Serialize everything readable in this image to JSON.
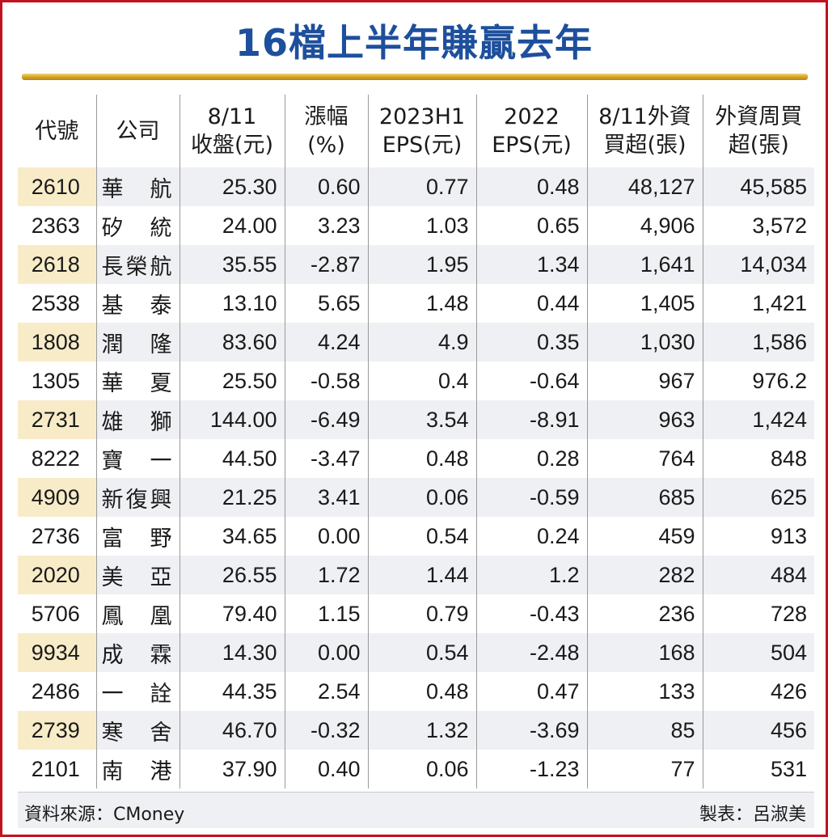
{
  "title": "16檔上半年賺贏去年",
  "colors": {
    "frame": "#c1121f",
    "title": "#1d4f9c",
    "band": "#eff0f3",
    "code_band": "#f8ecc8",
    "rule": "#d9a928"
  },
  "headers": [
    [
      "代號",
      ""
    ],
    [
      "公司",
      ""
    ],
    [
      "8/11",
      "收盤(元)"
    ],
    [
      "漲幅",
      "(%)"
    ],
    [
      "2023H1",
      "EPS(元)"
    ],
    [
      "2022",
      "EPS(元)"
    ],
    [
      "8/11外資",
      "買超(張)"
    ],
    [
      "外資周買",
      "超(張)"
    ]
  ],
  "rows": [
    [
      "2610",
      "華　航",
      "25.30",
      "0.60",
      "0.77",
      "0.48",
      "48,127",
      "45,585"
    ],
    [
      "2363",
      "矽　統",
      "24.00",
      "3.23",
      "1.03",
      "0.65",
      "4,906",
      "3,572"
    ],
    [
      "2618",
      "長榮航",
      "35.55",
      "-2.87",
      "1.95",
      "1.34",
      "1,641",
      "14,034"
    ],
    [
      "2538",
      "基　泰",
      "13.10",
      "5.65",
      "1.48",
      "0.44",
      "1,405",
      "1,421"
    ],
    [
      "1808",
      "潤　隆",
      "83.60",
      "4.24",
      "4.9",
      "0.35",
      "1,030",
      "1,586"
    ],
    [
      "1305",
      "華　夏",
      "25.50",
      "-0.58",
      "0.4",
      "-0.64",
      "967",
      "976.2"
    ],
    [
      "2731",
      "雄　獅",
      "144.00",
      "-6.49",
      "3.54",
      "-8.91",
      "963",
      "1,424"
    ],
    [
      "8222",
      "寶　一",
      "44.50",
      "-3.47",
      "0.48",
      "0.28",
      "764",
      "848"
    ],
    [
      "4909",
      "新復興",
      "21.25",
      "3.41",
      "0.06",
      "-0.59",
      "685",
      "625"
    ],
    [
      "2736",
      "富　野",
      "34.65",
      "0.00",
      "0.54",
      "0.24",
      "459",
      "913"
    ],
    [
      "2020",
      "美　亞",
      "26.55",
      "1.72",
      "1.44",
      "1.2",
      "282",
      "484"
    ],
    [
      "5706",
      "鳳　凰",
      "79.40",
      "1.15",
      "0.79",
      "-0.43",
      "236",
      "728"
    ],
    [
      "9934",
      "成　霖",
      "14.30",
      "0.00",
      "0.54",
      "-2.48",
      "168",
      "504"
    ],
    [
      "2486",
      "一　詮",
      "44.35",
      "2.54",
      "0.48",
      "0.47",
      "133",
      "426"
    ],
    [
      "2739",
      "寒　舍",
      "46.70",
      "-0.32",
      "1.32",
      "-3.69",
      "85",
      "456"
    ],
    [
      "2101",
      "南　港",
      "37.90",
      "0.40",
      "0.06",
      "-1.23",
      "77",
      "531"
    ]
  ],
  "footer": {
    "source": "資料來源：CMoney",
    "maker": "製表：呂淑美"
  }
}
